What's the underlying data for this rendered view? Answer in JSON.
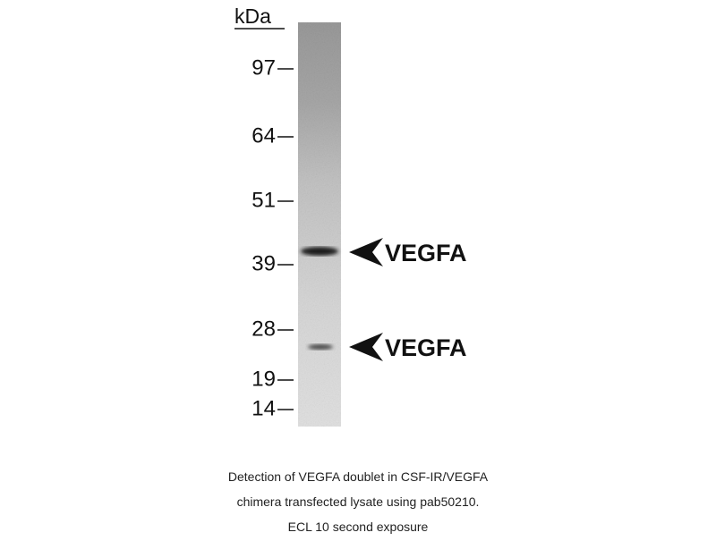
{
  "unit": "kDa",
  "markers": [
    "97",
    "64",
    "51",
    "39",
    "28",
    "19",
    "14"
  ],
  "bands": [
    {
      "label": "VEGFA"
    },
    {
      "label": "VEGFA"
    }
  ],
  "caption": [
    "Detection of VEGFA doublet in CSF-IR/VEGFA",
    "chimera transfected lysate using pab50210.",
    "ECL 10 second exposure"
  ]
}
